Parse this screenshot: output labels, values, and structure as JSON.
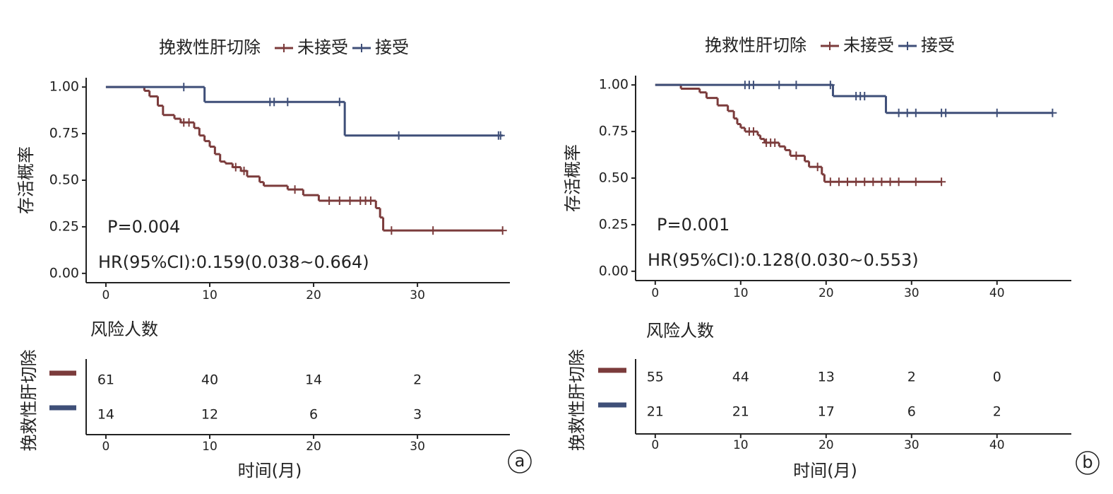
{
  "chart_data": [
    {
      "type": "km",
      "panel": "a",
      "legend_title": "挽救性肝切除",
      "ylabel": "存活概率",
      "xlabel": "时间(月)",
      "annotations": [
        "P=0.004",
        "HR(95%CI):0.159(0.038~0.664)"
      ],
      "xlim": [
        -1.9,
        38.9
      ],
      "xticks": [
        0,
        10,
        20,
        30
      ],
      "ylim": [
        -0.05,
        1.05
      ],
      "yticks": [
        {
          "value": 0,
          "label": "0.00"
        },
        {
          "value": 0.25,
          "label": "0.25"
        },
        {
          "value": 0.5,
          "label": "0.50"
        },
        {
          "value": 0.75,
          "label": "0.75"
        },
        {
          "value": 1,
          "label": "1.00"
        }
      ],
      "series": [
        {
          "name": "未接受",
          "color": "#7b3b3b",
          "x": [
            0,
            3.7,
            4.2,
            5.0,
            5.5,
            6.6,
            7.2,
            8.5,
            9.0,
            9.5,
            10.0,
            10.5,
            11.0,
            11.5,
            12.2,
            13.0,
            13.6,
            14.8,
            15.2,
            17.5,
            19.0,
            20.5,
            26.0,
            26.4,
            26.7,
            38.2
          ],
          "values": [
            1.0,
            0.98,
            0.95,
            0.9,
            0.85,
            0.83,
            0.81,
            0.78,
            0.74,
            0.71,
            0.68,
            0.64,
            0.6,
            0.59,
            0.57,
            0.55,
            0.52,
            0.49,
            0.47,
            0.45,
            0.42,
            0.39,
            0.35,
            0.3,
            0.23,
            0.23
          ],
          "censor_x": [
            7.5,
            8.0,
            12.5,
            13.3,
            18.2,
            21.5,
            22.5,
            23.5,
            24.5,
            25.0,
            25.5,
            27.5,
            31.5,
            38.2
          ],
          "censor_values": [
            0.81,
            0.81,
            0.57,
            0.55,
            0.45,
            0.39,
            0.39,
            0.39,
            0.39,
            0.39,
            0.39,
            0.23,
            0.23,
            0.23
          ]
        },
        {
          "name": "接受",
          "color": "#3f4f78",
          "x": [
            0,
            9.5,
            23.0,
            38.2
          ],
          "values": [
            1.0,
            0.92,
            0.74,
            0.74
          ],
          "censor_x": [
            7.5,
            15.8,
            16.2,
            17.5,
            22.5,
            28.2,
            37.8,
            38.0
          ],
          "censor_values": [
            1.0,
            0.92,
            0.92,
            0.92,
            0.92,
            0.74,
            0.74,
            0.74
          ]
        }
      ],
      "risk_table": {
        "title": "风险人数",
        "label": "挽救性肝切除",
        "rows": [
          [
            61,
            40,
            14,
            2
          ],
          [
            14,
            12,
            6,
            3
          ]
        ]
      }
    },
    {
      "type": "km",
      "panel": "b",
      "legend_title": "挽救性肝切除",
      "ylabel": "存活概率",
      "xlabel": "时间(月)",
      "annotations": [
        "P=0.001",
        "HR(95%CI):0.128(0.030~0.553)"
      ],
      "xlim": [
        -2.3,
        48.7
      ],
      "xticks": [
        0,
        10,
        20,
        30,
        40
      ],
      "ylim": [
        -0.05,
        1.05
      ],
      "yticks": [
        {
          "value": 0,
          "label": "0.00"
        },
        {
          "value": 0.25,
          "label": "0.25"
        },
        {
          "value": 0.5,
          "label": "0.50"
        },
        {
          "value": 0.75,
          "label": "0.75"
        },
        {
          "value": 1,
          "label": "1.00"
        }
      ],
      "series": [
        {
          "name": "未接受",
          "color": "#7b3b3b",
          "x": [
            0,
            3.0,
            5.2,
            6.0,
            7.3,
            8.5,
            9.2,
            9.6,
            10.0,
            10.5,
            12.0,
            12.3,
            12.8,
            14.5,
            15.2,
            15.8,
            17.5,
            18.0,
            19.5,
            19.8,
            33.5
          ],
          "values": [
            1.0,
            0.98,
            0.96,
            0.93,
            0.89,
            0.86,
            0.82,
            0.79,
            0.77,
            0.75,
            0.73,
            0.71,
            0.69,
            0.67,
            0.65,
            0.62,
            0.59,
            0.56,
            0.52,
            0.48,
            0.48
          ],
          "censor_x": [
            11.0,
            11.5,
            13.0,
            13.5,
            14.0,
            16.5,
            19.0,
            20.5,
            21.5,
            22.5,
            23.5,
            24.5,
            25.5,
            26.5,
            27.5,
            28.5,
            30.5,
            33.5
          ],
          "censor_values": [
            0.75,
            0.75,
            0.69,
            0.69,
            0.69,
            0.62,
            0.56,
            0.48,
            0.48,
            0.48,
            0.48,
            0.48,
            0.48,
            0.48,
            0.48,
            0.48,
            0.48,
            0.48
          ]
        },
        {
          "name": "接受",
          "color": "#3f4f78",
          "x": [
            0,
            20.8,
            27.0,
            46.5
          ],
          "values": [
            1.0,
            0.94,
            0.85,
            0.85
          ],
          "censor_x": [
            10.5,
            11.0,
            11.5,
            14.5,
            16.5,
            20.5,
            23.5,
            24.0,
            24.5,
            28.5,
            29.5,
            30.5,
            33.5,
            34.0,
            40.0,
            46.5
          ],
          "censor_values": [
            1.0,
            1.0,
            1.0,
            1.0,
            1.0,
            1.0,
            0.94,
            0.94,
            0.94,
            0.85,
            0.85,
            0.85,
            0.85,
            0.85,
            0.85,
            0.85
          ]
        }
      ],
      "risk_table": {
        "title": "风险人数",
        "label": "挽救性肝切除",
        "rows": [
          [
            55,
            44,
            13,
            2,
            0
          ],
          [
            21,
            21,
            17,
            6,
            2
          ]
        ]
      }
    }
  ]
}
